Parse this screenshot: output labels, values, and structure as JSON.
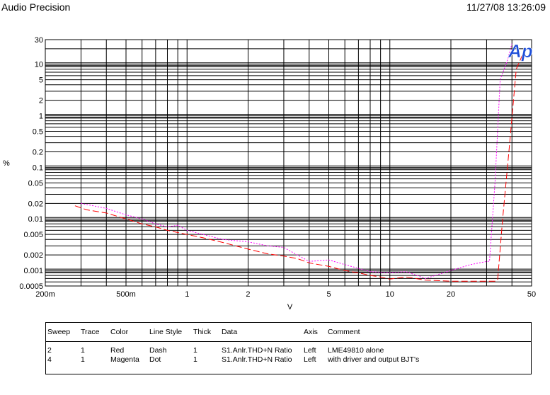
{
  "header": {
    "left": "Audio Precision",
    "right": "11/27/08 13:26:09"
  },
  "logo_text": "Ap",
  "chart_data": {
    "type": "line",
    "xscale": "log",
    "yscale": "log",
    "xlim": [
      0.2,
      50
    ],
    "ylim": [
      0.0005,
      30
    ],
    "xlabel": "V",
    "ylabel": "%",
    "grid": true,
    "x_ticks": [
      {
        "v": 0.2,
        "label": "200m"
      },
      {
        "v": 0.5,
        "label": "500m"
      },
      {
        "v": 1,
        "label": "1"
      },
      {
        "v": 2,
        "label": "2"
      },
      {
        "v": 5,
        "label": "5"
      },
      {
        "v": 10,
        "label": "10"
      },
      {
        "v": 20,
        "label": "20"
      },
      {
        "v": 50,
        "label": "50"
      }
    ],
    "y_ticks": [
      {
        "v": 0.0005,
        "label": "0.0005"
      },
      {
        "v": 0.001,
        "label": "0.001"
      },
      {
        "v": 0.002,
        "label": "0.002"
      },
      {
        "v": 0.005,
        "label": "0.005"
      },
      {
        "v": 0.01,
        "label": "0.01"
      },
      {
        "v": 0.02,
        "label": "0.02"
      },
      {
        "v": 0.05,
        "label": "0.05"
      },
      {
        "v": 0.1,
        "label": "0.1"
      },
      {
        "v": 0.2,
        "label": "0.2"
      },
      {
        "v": 0.5,
        "label": "0.5"
      },
      {
        "v": 1,
        "label": "1"
      },
      {
        "v": 2,
        "label": "2"
      },
      {
        "v": 5,
        "label": "5"
      },
      {
        "v": 10,
        "label": "10"
      },
      {
        "v": 30,
        "label": "30"
      }
    ],
    "series": [
      {
        "name": "LME49810 alone",
        "color": "#ff0000",
        "dash": "9,4",
        "points": [
          [
            0.28,
            0.018
          ],
          [
            0.32,
            0.015
          ],
          [
            0.4,
            0.013
          ],
          [
            0.5,
            0.01
          ],
          [
            0.6,
            0.008
          ],
          [
            0.7,
            0.007
          ],
          [
            0.8,
            0.006
          ],
          [
            1.0,
            0.005
          ],
          [
            1.2,
            0.0043
          ],
          [
            1.5,
            0.0035
          ],
          [
            2.0,
            0.0026
          ],
          [
            2.5,
            0.0021
          ],
          [
            3.0,
            0.0019
          ],
          [
            3.5,
            0.0017
          ],
          [
            4.0,
            0.0014
          ],
          [
            5.0,
            0.0012
          ],
          [
            6.0,
            0.001
          ],
          [
            7.0,
            0.0009
          ],
          [
            8.0,
            0.0008
          ],
          [
            9.0,
            0.00075
          ],
          [
            10.0,
            0.00068
          ],
          [
            12.0,
            0.00075
          ],
          [
            15.0,
            0.00065
          ],
          [
            20.0,
            0.00062
          ],
          [
            30.0,
            0.00062
          ],
          [
            33.0,
            0.00062
          ],
          [
            34.0,
            0.00065
          ],
          [
            36.0,
            0.01
          ],
          [
            39.0,
            0.3
          ],
          [
            42.0,
            8
          ],
          [
            45.0,
            15
          ]
        ]
      },
      {
        "name": "with driver and output BJT's",
        "color": "#ff00ff",
        "dash": "2,2",
        "points": [
          [
            0.3,
            0.02
          ],
          [
            0.4,
            0.016
          ],
          [
            0.5,
            0.012
          ],
          [
            0.6,
            0.01
          ],
          [
            0.7,
            0.008
          ],
          [
            0.8,
            0.007
          ],
          [
            0.9,
            0.0075
          ],
          [
            1.0,
            0.006
          ],
          [
            1.2,
            0.005
          ],
          [
            1.5,
            0.004
          ],
          [
            2.0,
            0.0036
          ],
          [
            2.5,
            0.003
          ],
          [
            3.0,
            0.0028
          ],
          [
            3.5,
            0.002
          ],
          [
            4.0,
            0.0015
          ],
          [
            5.0,
            0.0016
          ],
          [
            6.0,
            0.0013
          ],
          [
            7.0,
            0.0011
          ],
          [
            8.0,
            0.00095
          ],
          [
            10.0,
            0.0009
          ],
          [
            12.0,
            0.00095
          ],
          [
            15.0,
            0.0007
          ],
          [
            20.0,
            0.001
          ],
          [
            25.0,
            0.0013
          ],
          [
            30.0,
            0.0015
          ],
          [
            31.0,
            0.0015
          ],
          [
            33.0,
            0.05
          ],
          [
            35.0,
            5
          ],
          [
            38.0,
            12
          ],
          [
            40.0,
            25
          ]
        ]
      }
    ]
  },
  "legend": {
    "headers": [
      "Sweep",
      "Trace",
      "Color",
      "Line Style",
      "Thick",
      "Data",
      "Axis",
      "Comment"
    ],
    "rows": [
      [
        "2",
        "1",
        "Red",
        "Dash",
        "1",
        "S1.Anlr.THD+N Ratio",
        "Left",
        "LME49810 alone"
      ],
      [
        "4",
        "1",
        "Magenta",
        "Dot",
        "1",
        "S1.Anlr.THD+N Ratio",
        "Left",
        "with driver and output BJT's"
      ]
    ]
  }
}
